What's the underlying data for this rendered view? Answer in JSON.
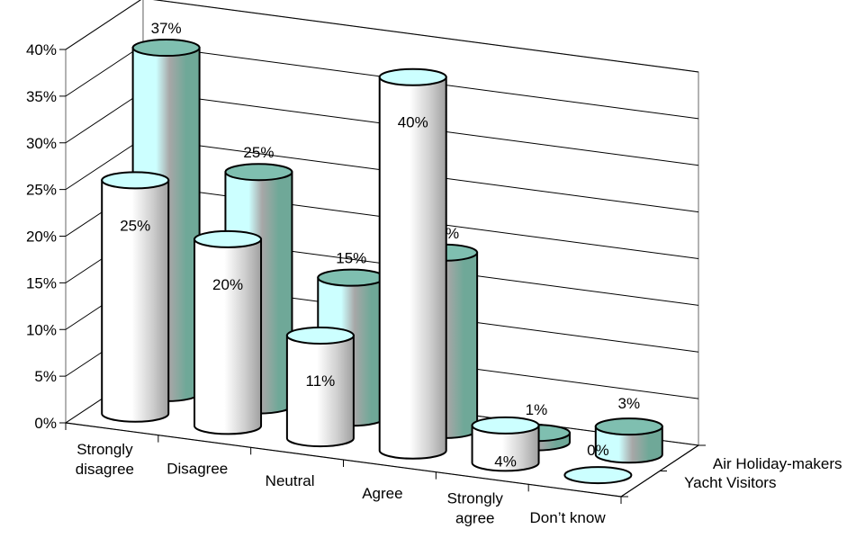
{
  "chart_data": {
    "type": "bar",
    "style": "3d-cylinder",
    "categories": [
      "Strongly disagree",
      "Disagree",
      "Neutral",
      "Agree",
      "Strongly agree",
      "Don't know"
    ],
    "category_labels": [
      [
        "Strongly",
        "disagree"
      ],
      [
        "Disagree"
      ],
      [
        "Neutral"
      ],
      [
        "Agree"
      ],
      [
        "Strongly",
        "agree"
      ],
      [
        "Don’t know"
      ]
    ],
    "series": [
      {
        "name": "Air Holiday-makers",
        "values": [
          37,
          25,
          15,
          19,
          1,
          3
        ],
        "labels": [
          "37%",
          "25%",
          "15%",
          "19%",
          "1%",
          "3%"
        ]
      },
      {
        "name": "Yacht Visitors",
        "values": [
          25,
          20,
          11,
          40,
          4,
          0
        ],
        "labels": [
          "25%",
          "20%",
          "11%",
          "40%",
          "4%",
          "0%"
        ]
      }
    ],
    "yticks": [
      "0%",
      "5%",
      "10%",
      "15%",
      "20%",
      "25%",
      "30%",
      "35%",
      "40%"
    ],
    "ylim": [
      0,
      40
    ],
    "grid": true,
    "colors": {
      "back_light": "#ccffff",
      "back_mid": "#a7a7a7",
      "back_dark": "#6fa898",
      "back_top": "#7fbfb0",
      "front_light": "#ffffff",
      "front_mid": "#d0d0d0",
      "front_dark": "#a0a0a0",
      "front_top": "#ccffff",
      "outline": "#000000",
      "grid": "#000000",
      "wall": "#808080"
    }
  }
}
